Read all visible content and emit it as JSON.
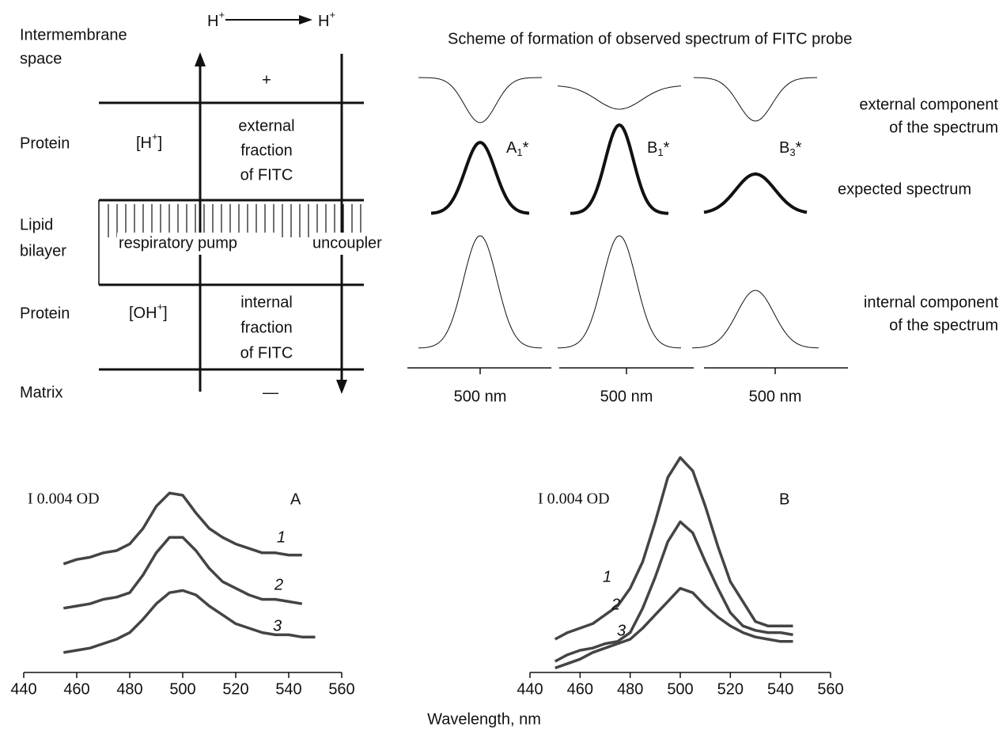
{
  "scheme": {
    "left": {
      "intermembrane": [
        "Intermembrane",
        "space"
      ],
      "h_left": {
        "symbol": "H",
        "charge": "+"
      },
      "h_right": {
        "symbol": "H",
        "charge": "+"
      },
      "plus": "+",
      "protein_top": "Protein",
      "h_conc": {
        "open": "[H",
        "charge": "+",
        "close": "]"
      },
      "external_fraction": [
        "external",
        "fraction",
        "of FITC"
      ],
      "lipid": [
        "Lipid",
        "bilayer"
      ],
      "pump": "respiratory pump",
      "uncoupler": "uncoupler",
      "protein_bottom": "Protein",
      "oh_conc": {
        "open": "[OH",
        "charge": "+",
        "close": "]"
      },
      "internal_fraction": [
        "internal",
        "fraction",
        "of FITC"
      ],
      "matrix": "Matrix",
      "minus": "—"
    },
    "right": {
      "title": "Scheme of formation of observed spectrum of FITC probe",
      "peaks": [
        {
          "letter": "A",
          "sub": "1",
          "suffix": "*"
        },
        {
          "letter": "B",
          "sub": "1",
          "suffix": "*"
        },
        {
          "letter": "B",
          "sub": "3",
          "suffix": "*"
        }
      ],
      "row_labels": {
        "external": [
          "external component",
          "of the spectrum"
        ],
        "expected": "expected spectrum",
        "internal": [
          "internal component",
          "of the spectrum"
        ]
      },
      "axis_labels": [
        "500 nm",
        "500 nm",
        "500 nm"
      ]
    }
  },
  "x_label": "Wavelength, nm",
  "chart_data": [
    {
      "type": "line",
      "title": "A",
      "scale_label": "I 0.004 OD",
      "x": [
        455,
        460,
        465,
        470,
        475,
        480,
        485,
        490,
        495,
        500,
        505,
        510,
        515,
        520,
        525,
        530,
        535,
        540,
        545,
        550
      ],
      "series": [
        {
          "name": "1",
          "color": "#444444",
          "values": [
            49,
            51,
            52,
            54,
            55,
            58,
            65,
            75,
            81,
            80,
            72,
            65,
            61,
            58,
            56,
            54,
            54,
            53,
            53,
            null
          ]
        },
        {
          "name": "2",
          "color": "#444444",
          "values": [
            29,
            30,
            31,
            33,
            34,
            36,
            44,
            54,
            61,
            61,
            55,
            47,
            41,
            38,
            35,
            33,
            33,
            32,
            31,
            null
          ]
        },
        {
          "name": "3",
          "color": "#444444",
          "values": [
            9,
            10,
            11,
            13,
            15,
            18,
            24,
            31,
            36,
            37,
            35,
            30,
            26,
            22,
            20,
            18,
            17,
            17,
            16,
            16
          ]
        }
      ],
      "xlim": [
        440,
        560
      ],
      "xticks": [
        440,
        460,
        480,
        500,
        520,
        540,
        560
      ],
      "ylim": [
        0,
        100
      ]
    },
    {
      "type": "line",
      "title": "B",
      "scale_label": "I 0.004 OD",
      "x": [
        450,
        455,
        460,
        465,
        470,
        475,
        480,
        485,
        490,
        495,
        500,
        505,
        510,
        515,
        520,
        525,
        530,
        535,
        540,
        545
      ],
      "series": [
        {
          "name": "1",
          "color": "#444444",
          "values": [
            15,
            18,
            20,
            22,
            26,
            30,
            38,
            50,
            68,
            88,
            97,
            91,
            75,
            57,
            41,
            32,
            23,
            21,
            21,
            21
          ]
        },
        {
          "name": "2",
          "color": "#444444",
          "values": [
            5,
            8,
            10,
            11,
            13,
            14,
            18,
            29,
            43,
            59,
            68,
            63,
            50,
            38,
            27,
            21,
            19,
            18,
            18,
            17
          ]
        },
        {
          "name": "3",
          "color": "#444444",
          "values": [
            2,
            4,
            6,
            9,
            11,
            13,
            15,
            20,
            26,
            32,
            38,
            36,
            30,
            25,
            21,
            18,
            16,
            15,
            14,
            14
          ]
        }
      ],
      "xlim": [
        440,
        560
      ],
      "xticks": [
        440,
        460,
        480,
        500,
        520,
        540,
        560
      ],
      "ylim": [
        0,
        100
      ]
    }
  ]
}
